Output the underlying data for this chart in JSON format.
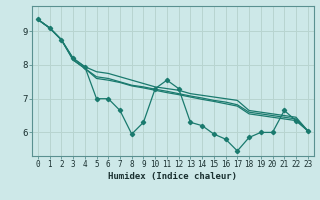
{
  "xlabel": "Humidex (Indice chaleur)",
  "background_color": "#cde8e8",
  "grid_color": "#b8d4d0",
  "line_color": "#1a7a6e",
  "xlim": [
    -0.5,
    23.5
  ],
  "ylim": [
    5.3,
    9.75
  ],
  "yticks": [
    6,
    7,
    8,
    9
  ],
  "xticks": [
    0,
    1,
    2,
    3,
    4,
    5,
    6,
    7,
    8,
    9,
    10,
    11,
    12,
    13,
    14,
    15,
    16,
    17,
    18,
    19,
    20,
    21,
    22,
    23
  ],
  "series": [
    [
      9.35,
      9.1,
      8.75,
      8.2,
      7.95,
      7.0,
      7.0,
      6.65,
      5.95,
      6.3,
      7.3,
      7.55,
      7.3,
      6.3,
      6.2,
      5.95,
      5.8,
      5.45,
      5.85,
      6.0,
      6.0,
      6.65,
      6.35,
      6.05
    ],
    [
      9.35,
      9.1,
      8.75,
      8.2,
      7.95,
      7.8,
      7.75,
      7.65,
      7.55,
      7.45,
      7.35,
      7.3,
      7.25,
      7.15,
      7.1,
      7.05,
      7.0,
      6.95,
      6.65,
      6.6,
      6.55,
      6.5,
      6.45,
      6.05
    ],
    [
      9.35,
      9.1,
      8.75,
      8.15,
      7.9,
      7.65,
      7.6,
      7.5,
      7.4,
      7.35,
      7.28,
      7.22,
      7.15,
      7.08,
      7.02,
      6.95,
      6.9,
      6.82,
      6.6,
      6.55,
      6.5,
      6.45,
      6.4,
      6.05
    ],
    [
      9.35,
      9.1,
      8.75,
      8.15,
      7.9,
      7.6,
      7.55,
      7.48,
      7.38,
      7.32,
      7.25,
      7.18,
      7.12,
      7.05,
      6.98,
      6.92,
      6.85,
      6.78,
      6.55,
      6.5,
      6.45,
      6.4,
      6.35,
      6.05
    ]
  ]
}
